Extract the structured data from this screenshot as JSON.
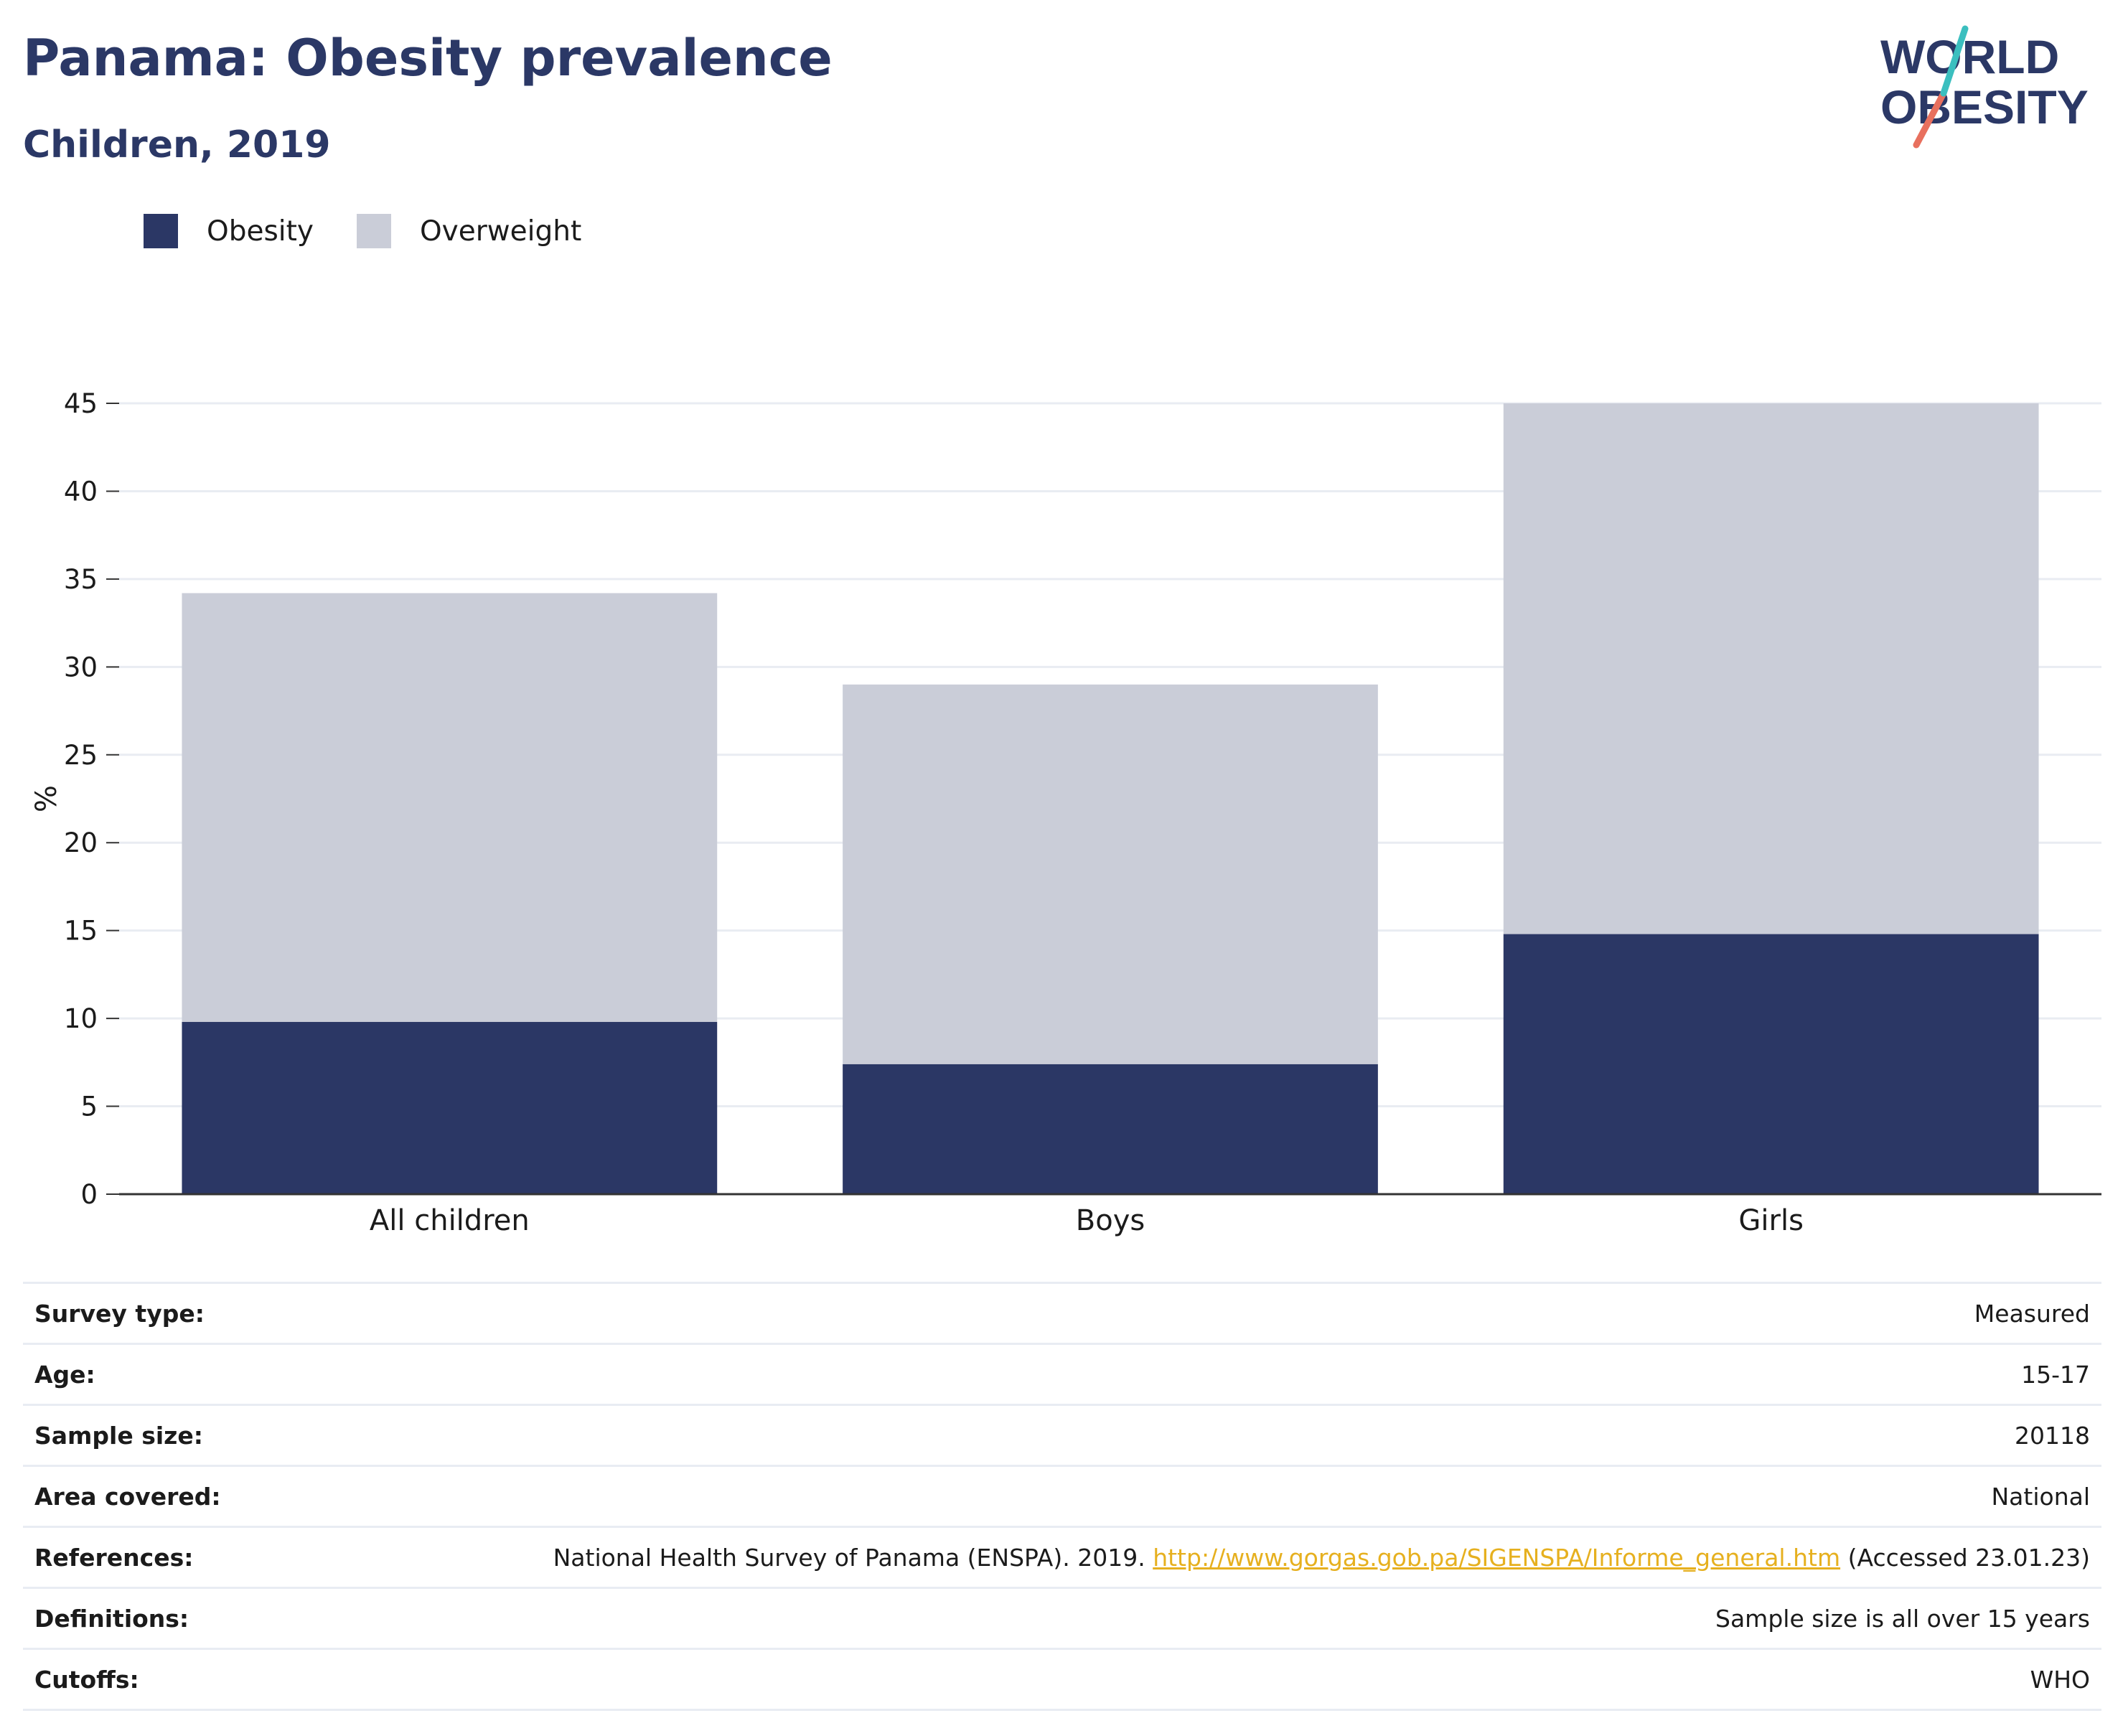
{
  "header": {
    "title": "Panama: Obesity prevalence",
    "subtitle": "Children, 2019",
    "logo_line1": "WORLD",
    "logo_line2": "OBESITY"
  },
  "legend": [
    {
      "label": "Obesity",
      "color": "#2b3765"
    },
    {
      "label": "Overweight",
      "color": "#cacdd8"
    }
  ],
  "chart_data": {
    "type": "bar",
    "stacked": true,
    "categories": [
      "All children",
      "Boys",
      "Girls"
    ],
    "series": [
      {
        "name": "Obesity",
        "values": [
          9.8,
          7.4,
          14.8
        ],
        "color": "#2b3765"
      },
      {
        "name": "Overweight",
        "values": [
          24.4,
          21.6,
          30.2
        ],
        "color": "#cacdd8"
      }
    ],
    "ylabel": "%",
    "ylim": [
      0,
      45
    ],
    "yticks": [
      0,
      5,
      10,
      15,
      20,
      25,
      30,
      35,
      40,
      45
    ],
    "grid": true,
    "legend_position": "top-left"
  },
  "details": [
    {
      "label": "Survey type:",
      "value": "Measured"
    },
    {
      "label": "Age:",
      "value": "15-17"
    },
    {
      "label": "Sample size:",
      "value": "20118"
    },
    {
      "label": "Area covered:",
      "value": "National"
    },
    {
      "label": "References:",
      "value_prefix": "National Health Survey of Panama (ENSPA). 2019. ",
      "link": "http://www.gorgas.gob.pa/SIGENSPA/Informe_general.htm",
      "value_suffix": " (Accessed 23.01.23)"
    },
    {
      "label": "Definitions:",
      "value": "Sample size is all over 15 years"
    },
    {
      "label": "Cutoffs:",
      "value": "WHO"
    }
  ]
}
